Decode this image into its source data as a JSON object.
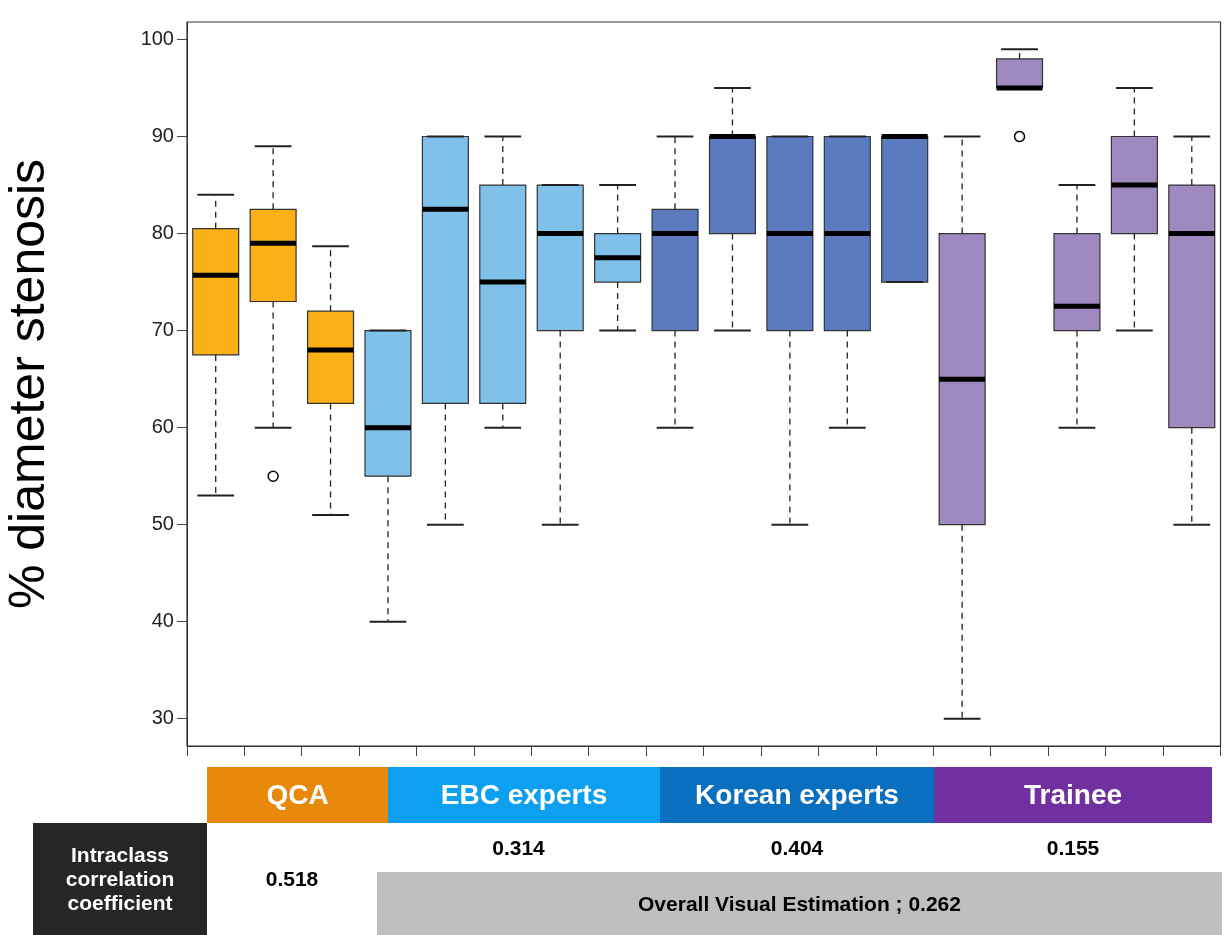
{
  "chart_data": {
    "type": "box",
    "ylabel": "% diameter stenosis",
    "categories": [
      null,
      null,
      null,
      null,
      null,
      null,
      null,
      null,
      null,
      null,
      null,
      null,
      null,
      null,
      null,
      null,
      null,
      null
    ],
    "boxes": [
      {
        "low": 53,
        "q1": 67.5,
        "median": 75.7,
        "q3": 80.5,
        "high": 84
      },
      {
        "low": 60,
        "q1": 73,
        "median": 79,
        "q3": 82.5,
        "high": 89,
        "outliers": [
          55
        ]
      },
      {
        "low": 51,
        "q1": 62.5,
        "median": 68,
        "q3": 72,
        "high": 78.7
      },
      {
        "low": 40,
        "q1": 55,
        "median": 60,
        "q3": 70,
        "high": 70
      },
      {
        "low": 50,
        "q1": 62.5,
        "median": 82.5,
        "q3": 90,
        "high": 90
      },
      {
        "low": 60,
        "q1": 62.5,
        "median": 75,
        "q3": 85,
        "high": 90
      },
      {
        "low": 50,
        "q1": 70,
        "median": 80,
        "q3": 85,
        "high": 85
      },
      {
        "low": 70,
        "q1": 75,
        "median": 77.5,
        "q3": 80,
        "high": 85
      },
      {
        "low": 60,
        "q1": 70,
        "median": 80,
        "q3": 82.5,
        "high": 90
      },
      {
        "low": 70,
        "q1": 80,
        "median": 90,
        "q3": 90,
        "high": 95
      },
      {
        "low": 50,
        "q1": 70,
        "median": 80,
        "q3": 90,
        "high": 90
      },
      {
        "low": 60,
        "q1": 70,
        "median": 80,
        "q3": 90,
        "high": 90
      },
      {
        "low": 75,
        "q1": 75,
        "median": 90,
        "q3": 90,
        "high": 90
      },
      {
        "low": 30,
        "q1": 50,
        "median": 65,
        "q3": 80,
        "high": 90
      },
      {
        "low": 95,
        "q1": 95,
        "median": 95,
        "q3": 98,
        "high": 99,
        "outliers": [
          90
        ]
      },
      {
        "low": 60,
        "q1": 70,
        "median": 72.5,
        "q3": 80,
        "high": 85
      },
      {
        "low": 70,
        "q1": 80,
        "median": 85,
        "q3": 90,
        "high": 95
      },
      {
        "low": 50,
        "q1": 60,
        "median": 80,
        "q3": 85,
        "high": 90
      }
    ],
    "colors": [
      "#fbb116",
      "#fbb116",
      "#fbb116",
      "#80c1ea",
      "#80c1ea",
      "#80c1ea",
      "#80c1ea",
      "#80c1ea",
      "#5a7bbf",
      "#5a7bbf",
      "#5a7bbf",
      "#5a7bbf",
      "#5a7bbf",
      "#9e89c0",
      "#9e89c0",
      "#9e89c0",
      "#9e89c0",
      "#9e89c0"
    ],
    "ylim": [
      27.2,
      101.8
    ],
    "yticks": [
      30,
      40,
      50,
      60,
      70,
      80,
      90,
      100
    ],
    "tick_labels": "y",
    "annotations": [
      "QCA",
      "EBC experts",
      "Korean experts",
      "Trainee",
      "Intraclass correlation coefficient",
      "0.518",
      "0.314",
      "0.404",
      "0.155",
      "Overall Visual Estimation ; 0.262"
    ]
  }
}
